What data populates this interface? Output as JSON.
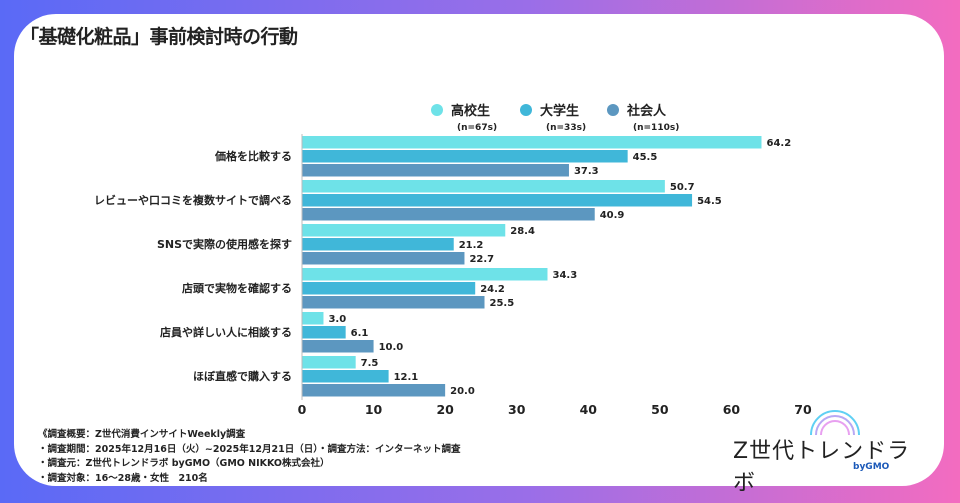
{
  "title": "「基礎化粧品」事前検討時の行動",
  "colors": {
    "high_school": "#6ee2e8",
    "university": "#40b7d9",
    "worker": "#5c97c0"
  },
  "chart_data": {
    "type": "bar",
    "orientation": "horizontal",
    "title": "「基礎化粧品」事前検討時の行動",
    "categories": [
      "価格を比較する",
      "レビューや口コミを複数サイトで調べる",
      "SNSで実際の使用感を探す",
      "店頭で実物を確認する",
      "店員や詳しい人に相談する",
      "ほぼ直感で購入する"
    ],
    "series": [
      {
        "name": "高校生",
        "n": "(n=67s)",
        "values": [
          64.2,
          50.7,
          28.4,
          34.3,
          3.0,
          7.5
        ]
      },
      {
        "name": "大学生",
        "n": "(n=33s)",
        "values": [
          45.5,
          54.5,
          21.2,
          24.2,
          6.1,
          12.1
        ]
      },
      {
        "name": "社会人",
        "n": "(n=110s)",
        "values": [
          37.3,
          40.9,
          22.7,
          25.5,
          10.0,
          20.0
        ]
      }
    ],
    "xlim": [
      0,
      70
    ],
    "xticks": [
      0,
      10,
      20,
      30,
      40,
      50,
      60,
      70
    ],
    "legend": "top"
  },
  "notes": [
    "《調査概要：Z世代消費インサイトWeekly調査",
    "・調査期間：2025年12月16日（火）~2025年12月21日（日）・調査方法：インターネット調査",
    "・調査元：Z世代トレンドラボ byGMO（GMO NIKKO株式会社）",
    "・調査対象：16〜28歳・女性　210名"
  ],
  "logo": {
    "name": "Z世代トレンドラボ",
    "by": "byGMO"
  }
}
